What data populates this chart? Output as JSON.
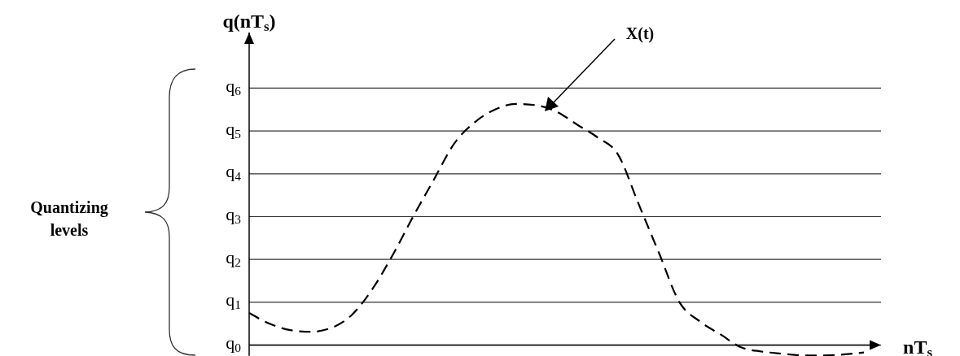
{
  "chart_data": {
    "type": "line",
    "ylabel": "q(nT$_{s}$)",
    "xlabel": "nT$_{s}$",
    "categories": [
      null,
      null,
      null,
      null,
      null,
      null,
      null,
      null,
      null,
      null,
      null,
      null,
      null,
      null,
      null,
      null,
      null,
      null,
      null,
      null,
      null,
      null,
      null,
      null,
      null,
      null,
      null,
      null,
      null,
      null,
      null
    ],
    "series": [
      {
        "color": "#000000",
        "values": [
          0.75,
          0.5,
          0.35,
          0.31,
          0.4,
          0.7,
          1.3,
          2.1,
          3.0,
          3.85,
          4.7,
          5.2,
          5.5,
          5.63,
          5.6,
          5.45,
          5.15,
          4.85,
          4.45,
          3.3,
          2.15,
          1.0,
          0.55,
          0.25,
          -0.05,
          -0.15,
          -0.2,
          -0.24,
          -0.24,
          -0.22,
          -0.17
        ]
      }
    ],
    "ylim": [
      -0.25,
      7.3
    ],
    "yticks": [
      {
        "value": 0,
        "label": "q$_{0}$"
      },
      {
        "value": 1,
        "label": "q$_{1}$"
      },
      {
        "value": 2,
        "label": "q$_{2}$"
      },
      {
        "value": 3,
        "label": "q$_{3}$"
      },
      {
        "value": 4,
        "label": "q$_{4}$"
      },
      {
        "value": 5,
        "label": "q$_{5}$"
      },
      {
        "value": 6,
        "label": "q$_{6}$"
      }
    ],
    "grid": "y",
    "line_style": "dashed",
    "marker": "none",
    "annotations": [
      "X(t)",
      "Quantizing levels"
    ]
  }
}
